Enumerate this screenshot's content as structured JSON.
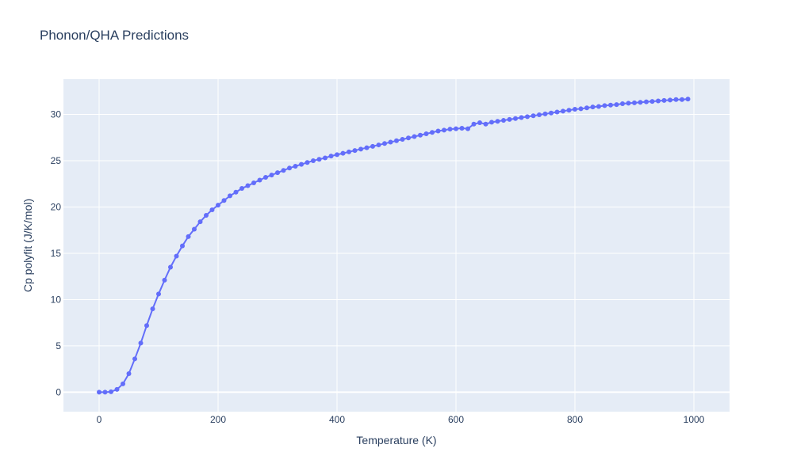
{
  "chart_data": {
    "type": "line",
    "title": "Phonon/QHA Predictions",
    "xlabel": "Temperature (K)",
    "ylabel": "Cp polyfit (J/K/mol)",
    "xlim": [
      -60,
      1060
    ],
    "ylim": [
      -2.1,
      33.8
    ],
    "xticks": [
      0,
      200,
      400,
      600,
      800,
      1000
    ],
    "yticks": [
      0,
      5,
      10,
      15,
      20,
      25,
      30
    ],
    "grid": true,
    "legend": "none",
    "colors": {
      "plot_bg": "#e5ecf6",
      "grid": "#ffffff",
      "series": "#636efa",
      "text": "#2a3f5f"
    },
    "series": [
      {
        "x": [
          0,
          10,
          20,
          30,
          40,
          50,
          60,
          70,
          80,
          90,
          100,
          110,
          120,
          130,
          140,
          150,
          160,
          170,
          180,
          190,
          200,
          210,
          220,
          230,
          240,
          250,
          260,
          270,
          280,
          290,
          300,
          310,
          320,
          330,
          340,
          350,
          360,
          370,
          380,
          390,
          400,
          410,
          420,
          430,
          440,
          450,
          460,
          470,
          480,
          490,
          500,
          510,
          520,
          530,
          540,
          550,
          560,
          570,
          580,
          590,
          600,
          610,
          620,
          630,
          640,
          650,
          660,
          670,
          680,
          690,
          700,
          710,
          720,
          730,
          740,
          750,
          760,
          770,
          780,
          790,
          800,
          810,
          820,
          830,
          840,
          850,
          860,
          870,
          880,
          890,
          900,
          910,
          920,
          930,
          940,
          950,
          960,
          970,
          980,
          990
        ],
        "y": [
          0.0,
          0.0,
          0.05,
          0.3,
          0.9,
          2.0,
          3.6,
          5.3,
          7.2,
          9.0,
          10.6,
          12.1,
          13.5,
          14.7,
          15.8,
          16.8,
          17.6,
          18.4,
          19.1,
          19.7,
          20.2,
          20.7,
          21.2,
          21.6,
          22.0,
          22.3,
          22.6,
          22.9,
          23.2,
          23.45,
          23.7,
          23.95,
          24.2,
          24.4,
          24.6,
          24.8,
          25.0,
          25.15,
          25.3,
          25.5,
          25.65,
          25.8,
          25.95,
          26.1,
          26.25,
          26.4,
          26.55,
          26.7,
          26.85,
          27.0,
          27.15,
          27.3,
          27.45,
          27.6,
          27.75,
          27.9,
          28.05,
          28.2,
          28.3,
          28.4,
          28.45,
          28.5,
          28.45,
          28.95,
          29.1,
          28.95,
          29.15,
          29.25,
          29.35,
          29.45,
          29.55,
          29.65,
          29.75,
          29.85,
          29.95,
          30.05,
          30.15,
          30.25,
          30.35,
          30.45,
          30.55,
          30.6,
          30.7,
          30.8,
          30.85,
          30.95,
          31.0,
          31.05,
          31.15,
          31.2,
          31.25,
          31.3,
          31.35,
          31.4,
          31.45,
          31.5,
          31.55,
          31.6,
          31.6,
          31.65
        ]
      }
    ]
  }
}
